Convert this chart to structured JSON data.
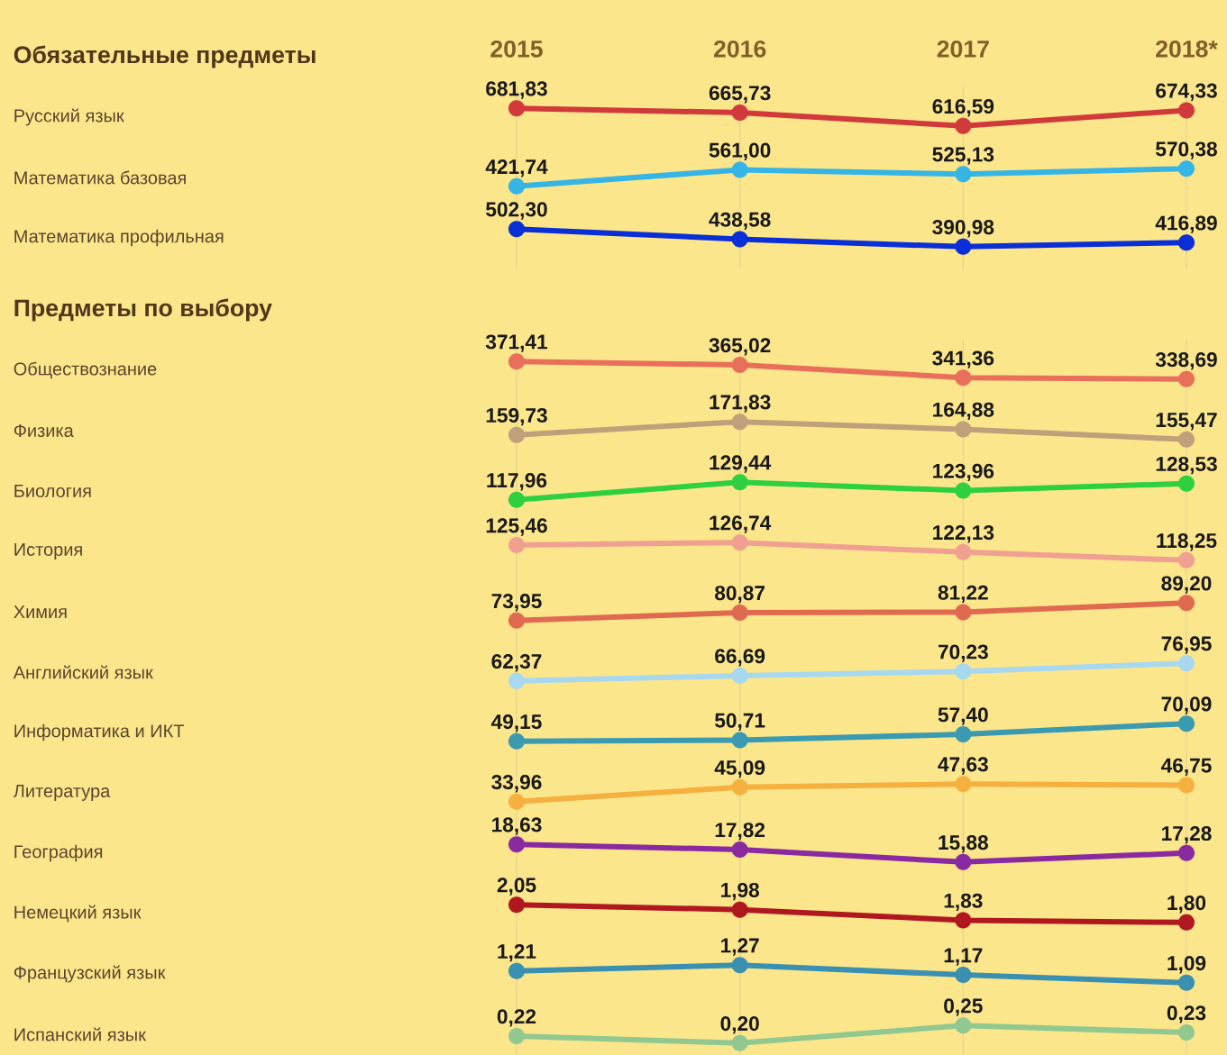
{
  "chart_data": [
    {
      "type": "line",
      "ylabel": "Русский язык",
      "annotations": [
        "Обязательные предметы"
      ],
      "categories": [
        "2015",
        "2016",
        "2017",
        "2018*"
      ],
      "values": [
        681.83,
        665.73,
        616.59,
        674.33
      ],
      "value_labels": [
        "681,83",
        "665,73",
        "616,59",
        "674,33"
      ],
      "color": "#d03a3a",
      "marker": "circle",
      "grid": "x",
      "tick_labels": "x"
    },
    {
      "type": "line",
      "ylabel": "Математика базовая",
      "categories": [
        null,
        null,
        null,
        null
      ],
      "values": [
        421.74,
        561.0,
        525.13,
        570.38
      ],
      "value_labels": [
        "421,74",
        "561,00",
        "525,13",
        "570,38"
      ],
      "color": "#35b5e5",
      "marker": "circle",
      "grid": "x",
      "tick_labels": false
    },
    {
      "type": "line",
      "ylabel": "Математика профильная",
      "categories": [
        null,
        null,
        null,
        null
      ],
      "values": [
        502.3,
        438.58,
        390.98,
        416.89
      ],
      "value_labels": [
        "502,30",
        "438,58",
        "390,98",
        "416,89"
      ],
      "color": "#0a2fd6",
      "marker": "circle",
      "grid": "x",
      "tick_labels": false
    },
    {
      "type": "line",
      "ylabel": "Обществознание",
      "annotations": [
        "Предметы по выбору"
      ],
      "categories": [
        null,
        null,
        null,
        null
      ],
      "values": [
        371.41,
        365.02,
        341.36,
        338.69
      ],
      "value_labels": [
        "371,41",
        "365,02",
        "341,36",
        "338,69"
      ],
      "color": "#e8705a",
      "marker": "circle",
      "grid": "x",
      "tick_labels": false
    },
    {
      "type": "line",
      "ylabel": "Физика",
      "categories": [
        null,
        null,
        null,
        null
      ],
      "values": [
        159.73,
        171.83,
        164.88,
        155.47
      ],
      "value_labels": [
        "159,73",
        "171,83",
        "164,88",
        "155,47"
      ],
      "color": "#bfa07a",
      "marker": "circle",
      "grid": "x",
      "tick_labels": false
    },
    {
      "type": "line",
      "ylabel": "Биология",
      "categories": [
        null,
        null,
        null,
        null
      ],
      "values": [
        117.96,
        129.44,
        123.96,
        128.53
      ],
      "value_labels": [
        "117,96",
        "129,44",
        "123,96",
        "128,53"
      ],
      "color": "#2fd040",
      "marker": "circle",
      "grid": "x",
      "tick_labels": false
    },
    {
      "type": "line",
      "ylabel": "История",
      "categories": [
        null,
        null,
        null,
        null
      ],
      "values": [
        125.46,
        126.74,
        122.13,
        118.25
      ],
      "value_labels": [
        "125,46",
        "126,74",
        "122,13",
        "118,25"
      ],
      "color": "#f0a090",
      "marker": "circle",
      "grid": "x",
      "tick_labels": false
    },
    {
      "type": "line",
      "ylabel": "Химия",
      "categories": [
        null,
        null,
        null,
        null
      ],
      "values": [
        73.95,
        80.87,
        81.22,
        89.2
      ],
      "value_labels": [
        "73,95",
        "80,87",
        "81,22",
        "89,20"
      ],
      "color": "#e06a50",
      "marker": "circle",
      "grid": "x",
      "tick_labels": false
    },
    {
      "type": "line",
      "ylabel": "Английский язык",
      "categories": [
        null,
        null,
        null,
        null
      ],
      "values": [
        62.37,
        66.69,
        70.23,
        76.95
      ],
      "value_labels": [
        "62,37",
        "66,69",
        "70,23",
        "76,95"
      ],
      "color": "#a8d8f0",
      "marker": "circle",
      "grid": "x",
      "tick_labels": false
    },
    {
      "type": "line",
      "ylabel": "Информатика и ИКТ",
      "categories": [
        null,
        null,
        null,
        null
      ],
      "values": [
        49.15,
        50.71,
        57.4,
        70.09
      ],
      "value_labels": [
        "49,15",
        "50,71",
        "57,40",
        "70,09"
      ],
      "color": "#3a9ab0",
      "marker": "circle",
      "grid": "x",
      "tick_labels": false
    },
    {
      "type": "line",
      "ylabel": "Литература",
      "categories": [
        null,
        null,
        null,
        null
      ],
      "values": [
        33.96,
        45.09,
        47.63,
        46.75
      ],
      "value_labels": [
        "33,96",
        "45,09",
        "47,63",
        "46,75"
      ],
      "color": "#f5b040",
      "marker": "circle",
      "grid": "x",
      "tick_labels": false
    },
    {
      "type": "line",
      "ylabel": "География",
      "categories": [
        null,
        null,
        null,
        null
      ],
      "values": [
        18.63,
        17.82,
        15.88,
        17.28
      ],
      "value_labels": [
        "18,63",
        "17,82",
        "15,88",
        "17,28"
      ],
      "color": "#8a2aa0",
      "marker": "circle",
      "grid": "x",
      "tick_labels": false
    },
    {
      "type": "line",
      "ylabel": "Немецкий язык",
      "categories": [
        null,
        null,
        null,
        null
      ],
      "values": [
        2.05,
        1.98,
        1.83,
        1.8
      ],
      "value_labels": [
        "2,05",
        "1,98",
        "1,83",
        "1,80"
      ],
      "color": "#b01820",
      "marker": "circle",
      "grid": "x",
      "tick_labels": false
    },
    {
      "type": "line",
      "ylabel": "Французский язык",
      "categories": [
        null,
        null,
        null,
        null
      ],
      "values": [
        1.21,
        1.27,
        1.17,
        1.09
      ],
      "value_labels": [
        "1,21",
        "1,27",
        "1,17",
        "1,09"
      ],
      "color": "#3a90b0",
      "marker": "circle",
      "grid": "x",
      "tick_labels": false
    },
    {
      "type": "line",
      "ylabel": "Испанский язык",
      "categories": [
        null,
        null,
        null,
        null
      ],
      "values": [
        0.22,
        0.2,
        0.25,
        0.23
      ],
      "value_labels": [
        "0,22",
        "0,20",
        "0,25",
        "0,23"
      ],
      "color": "#90c890",
      "marker": "circle",
      "grid": "x",
      "tick_labels": false
    }
  ]
}
